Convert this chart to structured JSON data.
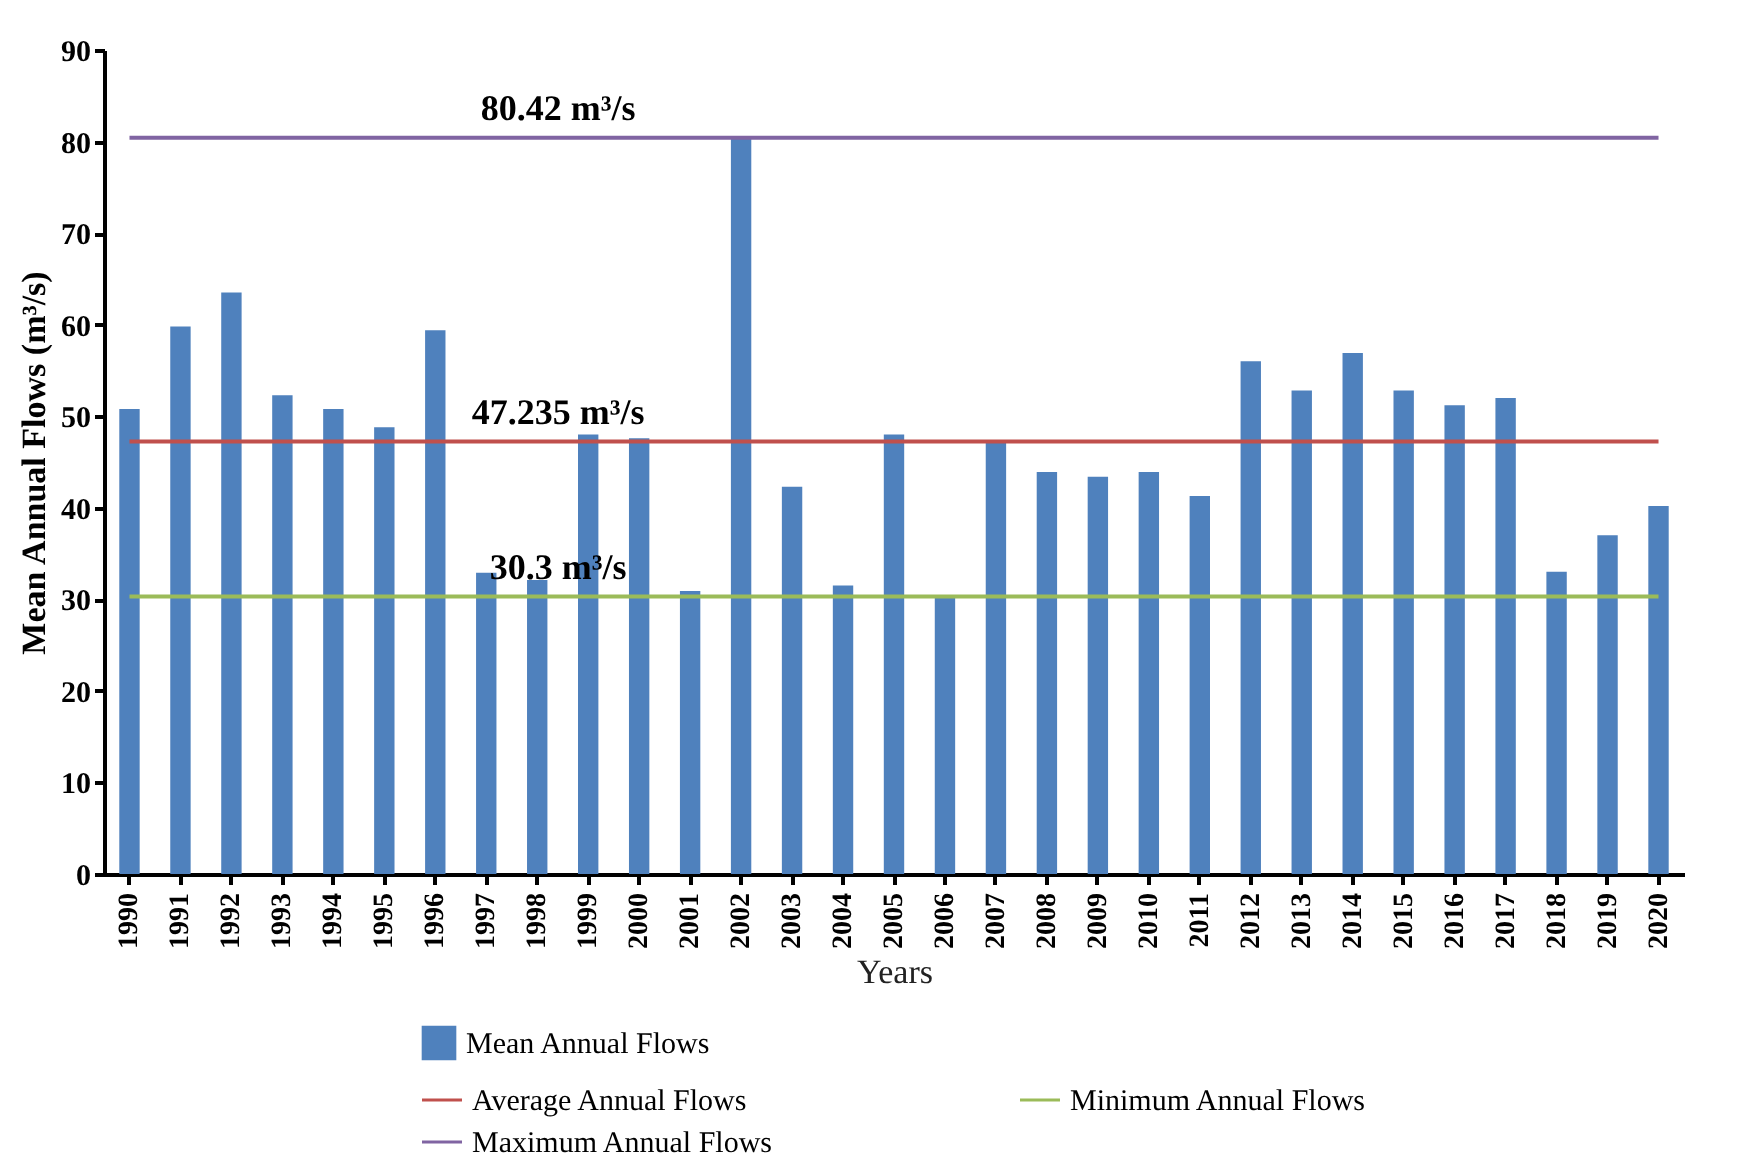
{
  "chart_data": {
    "type": "bar",
    "xlabel": "Years",
    "ylabel": "Mean Annual Flows (m³/s)",
    "categories": [
      "1990",
      "1991",
      "1992",
      "1993",
      "1994",
      "1995",
      "1996",
      "1997",
      "1998",
      "1999",
      "2000",
      "2001",
      "2002",
      "2003",
      "2004",
      "2005",
      "2006",
      "2007",
      "2008",
      "2009",
      "2010",
      "2011",
      "2012",
      "2013",
      "2014",
      "2015",
      "2016",
      "2017",
      "2018",
      "2019",
      "2020"
    ],
    "series": [
      {
        "name": "Mean Annual Flows",
        "color": "#4f81bd",
        "values": [
          50.8,
          59.8,
          63.5,
          52.3,
          50.8,
          48.8,
          59.4,
          32.9,
          32.1,
          48.0,
          47.6,
          30.9,
          80.42,
          42.3,
          31.5,
          48.0,
          30.3,
          47.3,
          43.9,
          43.4,
          43.9,
          41.3,
          56.0,
          52.8,
          56.9,
          52.8,
          51.2,
          52.0,
          33.0,
          37.0,
          40.2
        ]
      },
      {
        "name": "Average Annual Flows",
        "type": "line",
        "color": "#c0504d",
        "values": [
          47.235,
          47.235,
          47.235,
          47.235,
          47.235,
          47.235,
          47.235,
          47.235,
          47.235,
          47.235,
          47.235,
          47.235,
          47.235,
          47.235,
          47.235,
          47.235,
          47.235,
          47.235,
          47.235,
          47.235,
          47.235,
          47.235,
          47.235,
          47.235,
          47.235,
          47.235,
          47.235,
          47.235,
          47.235,
          47.235,
          47.235
        ]
      },
      {
        "name": "Minimum Annual Flows",
        "type": "line",
        "color": "#9bbb59",
        "values": [
          30.3,
          30.3,
          30.3,
          30.3,
          30.3,
          30.3,
          30.3,
          30.3,
          30.3,
          30.3,
          30.3,
          30.3,
          30.3,
          30.3,
          30.3,
          30.3,
          30.3,
          30.3,
          30.3,
          30.3,
          30.3,
          30.3,
          30.3,
          30.3,
          30.3,
          30.3,
          30.3,
          30.3,
          30.3,
          30.3,
          30.3
        ]
      },
      {
        "name": "Maximum Annual Flows",
        "type": "line",
        "color": "#8064a2",
        "values": [
          80.42,
          80.42,
          80.42,
          80.42,
          80.42,
          80.42,
          80.42,
          80.42,
          80.42,
          80.42,
          80.42,
          80.42,
          80.42,
          80.42,
          80.42,
          80.42,
          80.42,
          80.42,
          80.42,
          80.42,
          80.42,
          80.42,
          80.42,
          80.42,
          80.42,
          80.42,
          80.42,
          80.42,
          80.42,
          80.42,
          80.42
        ]
      }
    ],
    "annotations": [
      {
        "text": "80.42 m³/s",
        "x": "1999",
        "y": 80.42
      },
      {
        "text": "47.235 m³/s",
        "x": "1999",
        "y": 47.235
      },
      {
        "text": "30.3 m³/s",
        "x": "1999",
        "y": 30.3
      }
    ],
    "ylim": [
      0,
      90
    ],
    "yticks": [
      0,
      10,
      20,
      30,
      40,
      50,
      60,
      70,
      80,
      90
    ],
    "legend": "bottom",
    "marker": "none",
    "line_style": "solid"
  }
}
